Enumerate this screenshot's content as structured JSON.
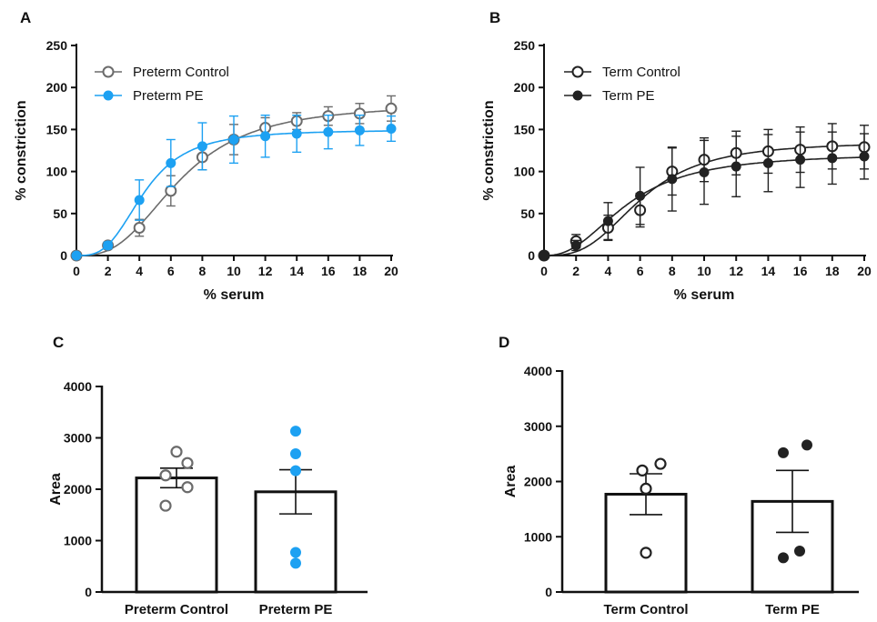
{
  "colors": {
    "gray": "#6b6b6b",
    "blue": "#1da1f2",
    "black": "#222222"
  },
  "chart_data": [
    {
      "panel": "A",
      "type": "line",
      "xlabel": "% serum",
      "ylabel": "% constriction",
      "xlim": [
        0,
        20
      ],
      "ylim": [
        0,
        250
      ],
      "xticks": [
        0,
        2,
        4,
        6,
        8,
        10,
        12,
        14,
        16,
        18,
        20
      ],
      "yticks": [
        0,
        50,
        100,
        150,
        200,
        250
      ],
      "legend_position": "top-left",
      "x": [
        0,
        2,
        4,
        6,
        8,
        10,
        12,
        14,
        16,
        18,
        20
      ],
      "series": [
        {
          "name": "Preterm Control",
          "marker": "open-circle",
          "color": "#6b6b6b",
          "values": [
            0,
            12,
            33,
            77,
            117,
            138,
            152,
            160,
            166,
            169,
            175
          ],
          "error": [
            2,
            4,
            10,
            18,
            15,
            18,
            12,
            10,
            11,
            12,
            15
          ]
        },
        {
          "name": "Preterm PE",
          "marker": "filled-circle",
          "color": "#1da1f2",
          "values": [
            0,
            12,
            66,
            110,
            130,
            138,
            142,
            145,
            147,
            149,
            151
          ],
          "error": [
            2,
            4,
            24,
            28,
            28,
            28,
            25,
            22,
            20,
            18,
            15
          ]
        }
      ]
    },
    {
      "panel": "B",
      "type": "line",
      "xlabel": "% serum",
      "ylabel": "% constriction",
      "xlim": [
        0,
        20
      ],
      "ylim": [
        0,
        250
      ],
      "xticks": [
        0,
        2,
        4,
        6,
        8,
        10,
        12,
        14,
        16,
        18,
        20
      ],
      "yticks": [
        0,
        50,
        100,
        150,
        200,
        250
      ],
      "legend_position": "top-left",
      "x": [
        0,
        2,
        4,
        6,
        8,
        10,
        12,
        14,
        16,
        18,
        20
      ],
      "series": [
        {
          "name": "Term Control",
          "marker": "open-circle",
          "color": "#222222",
          "values": [
            0,
            17,
            33,
            54,
            100,
            114,
            122,
            124,
            126,
            130,
            129
          ],
          "error": [
            2,
            8,
            15,
            20,
            28,
            26,
            26,
            26,
            27,
            27,
            26
          ]
        },
        {
          "name": "Term PE",
          "marker": "filled-circle",
          "color": "#222222",
          "values": [
            0,
            12,
            41,
            71,
            91,
            99,
            106,
            110,
            114,
            116,
            118
          ],
          "error": [
            2,
            6,
            22,
            34,
            38,
            38,
            36,
            34,
            33,
            31,
            27
          ]
        }
      ]
    },
    {
      "panel": "C",
      "type": "bar",
      "ylabel": "Area",
      "ylim": [
        0,
        4000
      ],
      "yticks": [
        0,
        1000,
        2000,
        3000,
        4000
      ],
      "categories": [
        "Preterm Control",
        "Preterm PE"
      ],
      "values": [
        2220,
        1950
      ],
      "error": [
        190,
        430
      ],
      "points": [
        {
          "category": "Preterm Control",
          "color": "#6b6b6b",
          "filled": false,
          "values": [
            2730,
            2510,
            2270,
            2040,
            1680
          ]
        },
        {
          "category": "Preterm PE",
          "color": "#1da1f2",
          "filled": true,
          "values": [
            3130,
            2690,
            2360,
            770,
            560
          ]
        }
      ]
    },
    {
      "panel": "D",
      "type": "bar",
      "ylabel": "Area",
      "ylim": [
        0,
        4000
      ],
      "yticks": [
        0,
        1000,
        2000,
        3000,
        4000
      ],
      "categories": [
        "Term Control",
        "Term PE"
      ],
      "values": [
        1770,
        1640
      ],
      "error": [
        370,
        560
      ],
      "points": [
        {
          "category": "Term Control",
          "color": "#222222",
          "filled": false,
          "values": [
            2320,
            2200,
            1870,
            710
          ]
        },
        {
          "category": "Term PE",
          "color": "#222222",
          "filled": true,
          "values": [
            2660,
            2520,
            740,
            620
          ]
        }
      ]
    }
  ]
}
